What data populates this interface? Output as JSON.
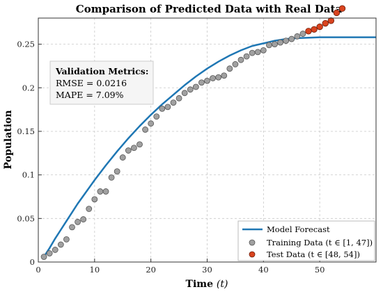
{
  "chart_data": {
    "type": "scatter",
    "title": "Comparison of Predicted Data with Real Data",
    "xlabel": "Time",
    "xlabel_var": "(t)",
    "ylabel": "Population",
    "xlim": [
      0,
      60
    ],
    "ylim": [
      0,
      0.28
    ],
    "xticks": [
      0,
      10,
      20,
      30,
      40,
      50
    ],
    "xtick_labels": [
      "0",
      "10",
      "20",
      "30",
      "40",
      "50"
    ],
    "yticks": [
      0,
      0.05,
      0.1,
      0.15,
      0.2,
      0.25
    ],
    "ytick_labels": [
      "0",
      "0.05",
      "0.1",
      "0.15",
      "0.2",
      "0.25"
    ],
    "grid": true,
    "legend_position": "bottom-right",
    "metrics": {
      "title": "Validation Metrics:",
      "rmse": "RMSE = 0.0216",
      "mape": "MAPE = 7.09%"
    },
    "series": [
      {
        "name": "Model Forecast",
        "type": "line",
        "color": "#1f77b4",
        "x": [
          1,
          2,
          3,
          4,
          5,
          6,
          7,
          8,
          9,
          10,
          12,
          14,
          16,
          18,
          20,
          22,
          24,
          26,
          28,
          30,
          32,
          34,
          36,
          38,
          40,
          42,
          44,
          46,
          48,
          50,
          52,
          54,
          56,
          58,
          60
        ],
        "y": [
          0.006,
          0.016,
          0.027,
          0.037,
          0.047,
          0.057,
          0.067,
          0.076,
          0.085,
          0.094,
          0.111,
          0.127,
          0.142,
          0.156,
          0.169,
          0.181,
          0.192,
          0.203,
          0.213,
          0.222,
          0.23,
          0.237,
          0.243,
          0.248,
          0.251,
          0.254,
          0.256,
          0.257,
          0.2575,
          0.258,
          0.258,
          0.258,
          0.258,
          0.258,
          0.258
        ]
      },
      {
        "name": "Training Data (t ∈ [1, 47])",
        "type": "scatter",
        "color": "#a0a0a0",
        "x": [
          1,
          2,
          3,
          4,
          5,
          6,
          7,
          8,
          9,
          10,
          11,
          12,
          13,
          14,
          15,
          16,
          17,
          18,
          19,
          20,
          21,
          22,
          23,
          24,
          25,
          26,
          27,
          28,
          29,
          30,
          31,
          32,
          33,
          34,
          35,
          36,
          37,
          38,
          39,
          40,
          41,
          42,
          43,
          44,
          45,
          46,
          47
        ],
        "y": [
          0.006,
          0.01,
          0.014,
          0.02,
          0.026,
          0.04,
          0.046,
          0.049,
          0.061,
          0.072,
          0.081,
          0.081,
          0.097,
          0.104,
          0.12,
          0.128,
          0.131,
          0.135,
          0.152,
          0.159,
          0.167,
          0.176,
          0.178,
          0.183,
          0.188,
          0.194,
          0.198,
          0.201,
          0.206,
          0.208,
          0.211,
          0.212,
          0.214,
          0.222,
          0.227,
          0.232,
          0.236,
          0.24,
          0.241,
          0.243,
          0.249,
          0.25,
          0.252,
          0.254,
          0.256,
          0.259,
          0.262
        ]
      },
      {
        "name": "Test Data (t ∈ [48, 54])",
        "type": "scatter",
        "color": "#d9441f",
        "x": [
          48,
          49,
          50,
          51,
          52,
          53,
          54
        ],
        "y": [
          0.265,
          0.267,
          0.27,
          0.274,
          0.277,
          0.286,
          0.291
        ]
      }
    ]
  }
}
